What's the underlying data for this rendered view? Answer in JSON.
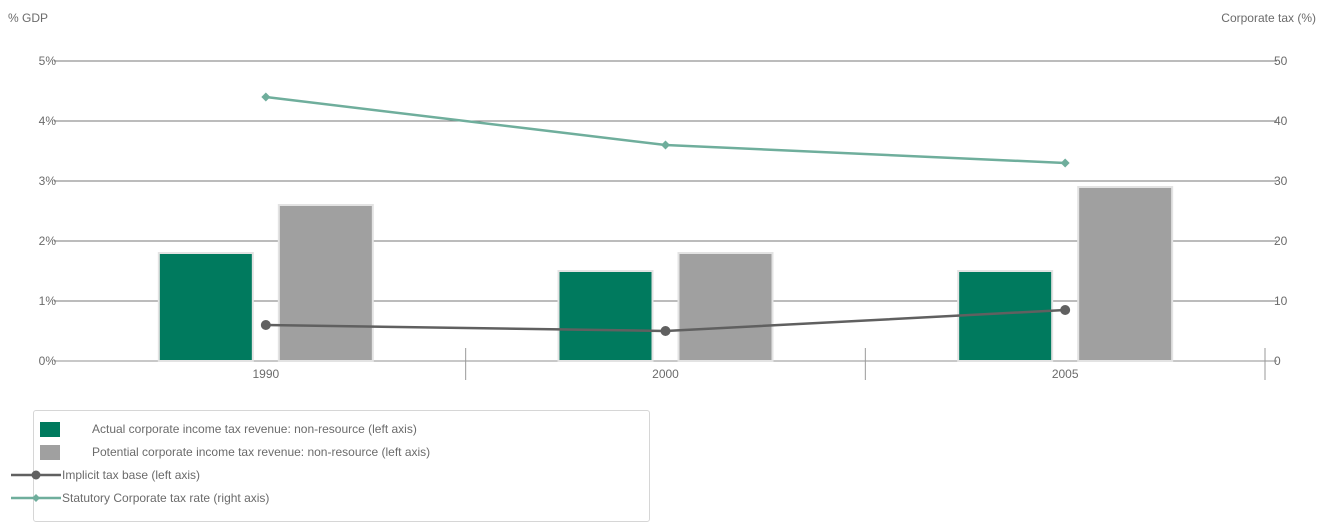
{
  "chart_data": {
    "type": "bar",
    "categories": [
      "1990",
      "2000",
      "2005"
    ],
    "left_axis": {
      "label": "% GDP",
      "ylim": [
        0,
        5
      ],
      "ticks": [
        "0%",
        "1%",
        "2%",
        "3%",
        "4%",
        "5%"
      ]
    },
    "right_axis": {
      "label": "Corporate tax (%)",
      "ylim": [
        0,
        50
      ],
      "ticks": [
        "0",
        "10",
        "20",
        "30",
        "40",
        "50"
      ]
    },
    "series": [
      {
        "name": "Actual corporate income tax revenue: non-resource (left axis)",
        "kind": "bar",
        "axis": "left",
        "color": "#007a5e",
        "values": [
          1.8,
          1.5,
          1.5
        ]
      },
      {
        "name": "Potential corporate income tax revenue: non-resource (left axis)",
        "kind": "bar",
        "axis": "left",
        "color": "#a0a0a0",
        "values": [
          2.6,
          1.8,
          2.9
        ]
      },
      {
        "name": "Implicit tax base (left axis)",
        "kind": "line",
        "marker": "circle",
        "axis": "left",
        "color": "#606060",
        "values": [
          0.6,
          0.5,
          0.85
        ]
      },
      {
        "name": "Statutory Corporate tax rate (right axis)",
        "kind": "line",
        "marker": "diamond",
        "axis": "right",
        "color": "#6fae9c",
        "values": [
          44,
          36,
          33
        ]
      }
    ],
    "grid": true,
    "legend_position": "bottom-left"
  }
}
